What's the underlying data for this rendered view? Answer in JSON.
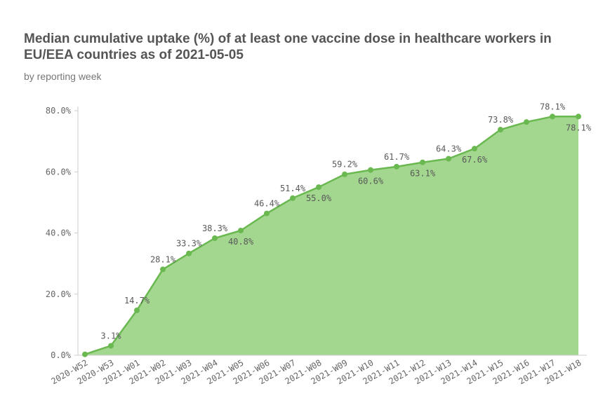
{
  "header": {
    "title": "Median cumulative uptake (%) of at least one vaccine dose in healthcare workers in EU/EEA countries as of 2021-05-05",
    "subtitle": "by reporting week"
  },
  "chart_data": {
    "type": "area",
    "title": "Median cumulative uptake (%) of at least one vaccine dose in healthcare workers in EU/EEA countries as of 2021-05-05",
    "subtitle": "by reporting week",
    "xlabel": "",
    "ylabel": "",
    "categories": [
      "2020-W52",
      "2020-W53",
      "2021-W01",
      "2021-W02",
      "2021-W03",
      "2021-W04",
      "2021-W05",
      "2021-W06",
      "2021-W07",
      "2021-W08",
      "2021-W09",
      "2021-W10",
      "2021-W11",
      "2021-W12",
      "2021-W13",
      "2021-W14",
      "2021-W15",
      "2021-W16",
      "2021-W17",
      "2021-W18"
    ],
    "values": [
      0.3,
      3.1,
      14.7,
      28.1,
      33.3,
      38.3,
      40.8,
      46.4,
      51.4,
      55.0,
      59.2,
      60.6,
      61.7,
      63.1,
      64.3,
      67.6,
      73.8,
      76.3,
      78.1,
      78.1
    ],
    "data_labels": [
      {
        "index": 1,
        "text": "3.1%",
        "position": "above"
      },
      {
        "index": 2,
        "text": "14.7%",
        "position": "above"
      },
      {
        "index": 3,
        "text": "28.1%",
        "position": "above"
      },
      {
        "index": 4,
        "text": "33.3%",
        "position": "above"
      },
      {
        "index": 5,
        "text": "38.3%",
        "position": "above"
      },
      {
        "index": 6,
        "text": "40.8%",
        "position": "below"
      },
      {
        "index": 7,
        "text": "46.4%",
        "position": "above"
      },
      {
        "index": 8,
        "text": "51.4%",
        "position": "above"
      },
      {
        "index": 9,
        "text": "55.0%",
        "position": "below"
      },
      {
        "index": 10,
        "text": "59.2%",
        "position": "above"
      },
      {
        "index": 11,
        "text": "60.6%",
        "position": "below"
      },
      {
        "index": 12,
        "text": "61.7%",
        "position": "above"
      },
      {
        "index": 13,
        "text": "63.1%",
        "position": "below"
      },
      {
        "index": 14,
        "text": "64.3%",
        "position": "above"
      },
      {
        "index": 15,
        "text": "67.6%",
        "position": "below"
      },
      {
        "index": 16,
        "text": "73.8%",
        "position": "above"
      },
      {
        "index": 18,
        "text": "78.1%",
        "position": "above"
      },
      {
        "index": 19,
        "text": "78.1%",
        "position": "below"
      }
    ],
    "yticks": [
      {
        "value": 0,
        "label": "0.0%"
      },
      {
        "value": 20,
        "label": "20.0%"
      },
      {
        "value": 40,
        "label": "40.0%"
      },
      {
        "value": 60,
        "label": "60.0%"
      },
      {
        "value": 80,
        "label": "80.0%"
      }
    ],
    "ylim": [
      0,
      80
    ],
    "grid": false,
    "legend": "none",
    "colors": {
      "area": "#a3d68f",
      "line": "#6ab850",
      "marker": "#6ab850",
      "axis": "#cccccc",
      "text": "#595959"
    }
  }
}
